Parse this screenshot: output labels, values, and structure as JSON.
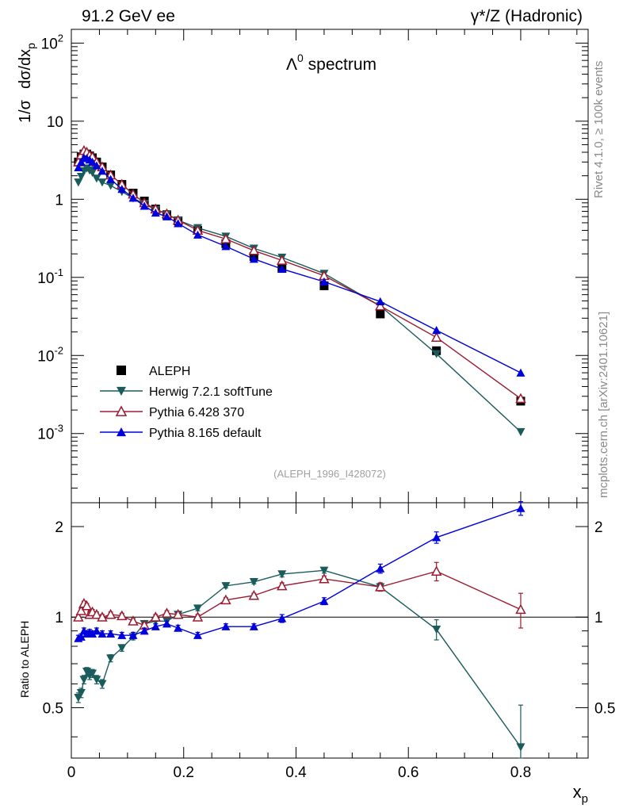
{
  "header": {
    "left": "91.2 GeV ee",
    "right": "γ*/Z (Hadronic)"
  },
  "side_text": {
    "rivet": "Rivet 4.1.0, ≥ 100k events",
    "mcplots": "mcplots.cern.ch [arXiv:2401.10621]"
  },
  "chart_data": [
    {
      "type": "scatter",
      "title": "Λ⁰ spectrum",
      "title_base": "Λ",
      "title_sup": "0",
      "title_rest": " spectrum",
      "ylabel": "1/σ  dσ/dx_p",
      "ylabel_parts": [
        "1/σ",
        "dσ/dx",
        "p"
      ],
      "yscale": "log",
      "ylim": [
        0.00013,
        150
      ],
      "xlim": [
        0,
        0.92
      ],
      "y_ticks": [
        {
          "value": 0.001,
          "base": "10",
          "exp": "-3"
        },
        {
          "value": 0.01,
          "base": "10",
          "exp": "-2"
        },
        {
          "value": 0.1,
          "base": "10",
          "exp": "-1"
        },
        {
          "value": 1,
          "label": "1"
        },
        {
          "value": 10,
          "label": "10"
        },
        {
          "value": 100,
          "base": "10",
          "exp": "2"
        }
      ],
      "watermark": "(ALEPH_1996_I428072)",
      "legend_placement": "lower-left",
      "series": [
        {
          "name": "ALEPH",
          "color": "#000000",
          "marker": "square",
          "x": [
            0.0125,
            0.0175,
            0.0225,
            0.0275,
            0.0325,
            0.0375,
            0.045,
            0.055,
            0.07,
            0.09,
            0.11,
            0.13,
            0.15,
            0.17,
            0.19,
            0.225,
            0.275,
            0.325,
            0.375,
            0.45,
            0.55,
            0.65,
            0.8
          ],
          "y": [
            3.0,
            3.5,
            3.8,
            3.8,
            3.6,
            3.4,
            3.0,
            2.6,
            2.05,
            1.55,
            1.2,
            0.95,
            0.75,
            0.63,
            0.53,
            0.4,
            0.27,
            0.185,
            0.13,
            0.078,
            0.034,
            0.0115,
            0.0026
          ]
        },
        {
          "name": "Herwig 7.2.1 softTune",
          "color": "#1a5c5c",
          "marker": "triangle-down",
          "x": [
            0.0125,
            0.0175,
            0.0225,
            0.0275,
            0.0325,
            0.0375,
            0.045,
            0.055,
            0.07,
            0.09,
            0.11,
            0.13,
            0.15,
            0.17,
            0.19,
            0.225,
            0.275,
            0.325,
            0.375,
            0.45,
            0.55,
            0.65,
            0.8
          ],
          "y": [
            1.65,
            1.95,
            2.3,
            2.5,
            2.35,
            2.2,
            1.85,
            1.65,
            1.5,
            1.25,
            1.03,
            0.88,
            0.73,
            0.65,
            0.54,
            0.43,
            0.335,
            0.235,
            0.18,
            0.112,
            0.043,
            0.0105,
            0.00105
          ]
        },
        {
          "name": "Pythia 6.428 370",
          "color": "#9b1b30",
          "marker": "triangle-open",
          "x": [
            0.0125,
            0.0175,
            0.0225,
            0.0275,
            0.0325,
            0.0375,
            0.045,
            0.055,
            0.07,
            0.09,
            0.11,
            0.13,
            0.15,
            0.17,
            0.19,
            0.225,
            0.275,
            0.325,
            0.375,
            0.45,
            0.55,
            0.65,
            0.8
          ],
          "y": [
            3.0,
            3.7,
            4.2,
            4.0,
            3.65,
            3.5,
            3.0,
            2.6,
            2.05,
            1.55,
            1.16,
            0.9,
            0.75,
            0.65,
            0.54,
            0.4,
            0.31,
            0.22,
            0.165,
            0.105,
            0.043,
            0.017,
            0.0028
          ]
        },
        {
          "name": "Pythia 8.165 default",
          "color": "#0000dd",
          "marker": "triangle-up",
          "x": [
            0.0125,
            0.0175,
            0.0225,
            0.0275,
            0.0325,
            0.0375,
            0.045,
            0.055,
            0.07,
            0.09,
            0.11,
            0.13,
            0.15,
            0.17,
            0.19,
            0.225,
            0.275,
            0.325,
            0.375,
            0.45,
            0.55,
            0.65,
            0.8
          ],
          "y": [
            2.55,
            3.0,
            3.4,
            3.35,
            3.2,
            3.0,
            2.7,
            2.3,
            1.8,
            1.35,
            1.04,
            0.82,
            0.67,
            0.6,
            0.49,
            0.35,
            0.25,
            0.172,
            0.128,
            0.088,
            0.049,
            0.021,
            0.006
          ]
        }
      ]
    },
    {
      "type": "scatter",
      "ylabel": "Ratio to ALEPH",
      "yscale": "log",
      "ylim": [
        0.34,
        2.4
      ],
      "xlim": [
        0,
        0.92
      ],
      "xlabel": "x_p",
      "xlabel_base": "x",
      "xlabel_sub": "p",
      "x_ticks": [
        {
          "value": 0,
          "label": "0"
        },
        {
          "value": 0.2,
          "label": "0.2"
        },
        {
          "value": 0.4,
          "label": "0.4"
        },
        {
          "value": 0.6,
          "label": "0.6"
        },
        {
          "value": 0.8,
          "label": "0.8"
        }
      ],
      "y_ticks": [
        {
          "value": 0.5,
          "label": "0.5"
        },
        {
          "value": 1,
          "label": "1"
        },
        {
          "value": 2,
          "label": "2"
        }
      ],
      "reference_line": 1,
      "series": [
        {
          "name": "Herwig 7.2.1 softTune",
          "color": "#1a5c5c",
          "marker": "triangle-down",
          "x": [
            0.0125,
            0.0175,
            0.0225,
            0.0275,
            0.0325,
            0.0375,
            0.045,
            0.055,
            0.07,
            0.09,
            0.11,
            0.13,
            0.15,
            0.17,
            0.19,
            0.225,
            0.275,
            0.325,
            0.375,
            0.45,
            0.55,
            0.65,
            0.8
          ],
          "y": [
            0.54,
            0.56,
            0.62,
            0.66,
            0.64,
            0.65,
            0.62,
            0.6,
            0.73,
            0.79,
            0.86,
            0.95,
            0.97,
            0.97,
            1.02,
            1.07,
            1.27,
            1.31,
            1.39,
            1.43,
            1.26,
            0.91,
            0.37
          ],
          "err": [
            0.02,
            0.02,
            0.02,
            0.02,
            0.02,
            0.02,
            0.02,
            0.02,
            0.02,
            0.02,
            0.02,
            0.02,
            0.02,
            0.02,
            0.02,
            0.02,
            0.02,
            0.02,
            0.03,
            0.03,
            0.04,
            0.07,
            0.14
          ]
        },
        {
          "name": "Pythia 6.428 370",
          "color": "#9b1b30",
          "marker": "triangle-open",
          "x": [
            0.0125,
            0.0175,
            0.0225,
            0.0275,
            0.0325,
            0.0375,
            0.045,
            0.055,
            0.07,
            0.09,
            0.11,
            0.13,
            0.15,
            0.17,
            0.19,
            0.225,
            0.275,
            0.325,
            0.375,
            0.45,
            0.55,
            0.65,
            0.8
          ],
          "y": [
            1.0,
            1.05,
            1.11,
            1.09,
            1.02,
            1.04,
            1.02,
            1.0,
            1.02,
            1.01,
            0.97,
            0.94,
            1.0,
            1.03,
            1.02,
            1.0,
            1.14,
            1.18,
            1.27,
            1.34,
            1.26,
            1.42,
            1.06
          ],
          "err": [
            0.02,
            0.02,
            0.02,
            0.02,
            0.02,
            0.02,
            0.02,
            0.02,
            0.02,
            0.02,
            0.02,
            0.02,
            0.02,
            0.02,
            0.02,
            0.02,
            0.02,
            0.02,
            0.03,
            0.03,
            0.04,
            0.1,
            0.14
          ]
        },
        {
          "name": "Pythia 8.165 default",
          "color": "#0000dd",
          "marker": "triangle-up",
          "x": [
            0.0125,
            0.0175,
            0.0225,
            0.0275,
            0.0325,
            0.0375,
            0.045,
            0.055,
            0.07,
            0.09,
            0.11,
            0.13,
            0.15,
            0.17,
            0.19,
            0.225,
            0.275,
            0.325,
            0.375,
            0.45,
            0.55,
            0.65,
            0.8
          ],
          "y": [
            0.85,
            0.86,
            0.9,
            0.88,
            0.89,
            0.88,
            0.9,
            0.88,
            0.88,
            0.87,
            0.87,
            0.9,
            0.93,
            0.95,
            0.92,
            0.87,
            0.93,
            0.93,
            0.99,
            1.13,
            1.45,
            1.84,
            2.3
          ],
          "err": [
            0.02,
            0.02,
            0.02,
            0.02,
            0.02,
            0.02,
            0.02,
            0.02,
            0.02,
            0.02,
            0.02,
            0.02,
            0.02,
            0.02,
            0.02,
            0.02,
            0.02,
            0.02,
            0.03,
            0.03,
            0.05,
            0.08,
            0.12
          ]
        }
      ]
    }
  ]
}
